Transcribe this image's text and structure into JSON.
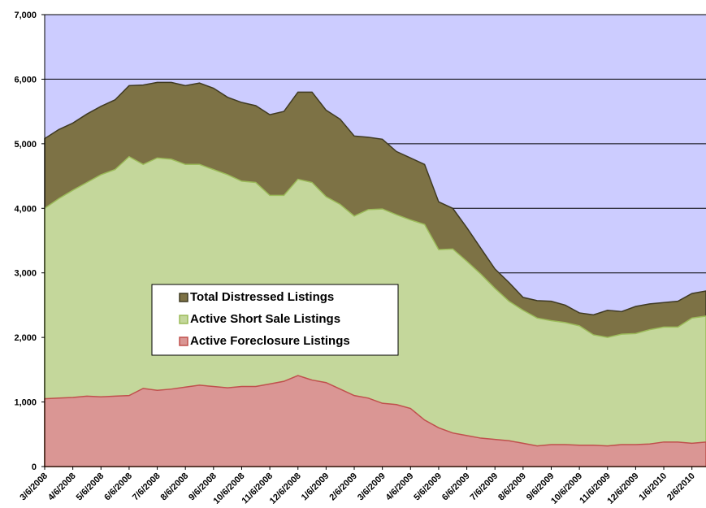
{
  "chart_data": {
    "type": "area",
    "categories": [
      "3/6/2008",
      null,
      "4/6/2008",
      null,
      "5/6/2008",
      null,
      "6/6/2008",
      null,
      "7/6/2008",
      null,
      "8/6/2008",
      null,
      "9/6/2008",
      null,
      "10/6/2008",
      null,
      "11/6/2008",
      null,
      "12/6/2008",
      null,
      "1/6/2009",
      null,
      "2/6/2009",
      null,
      "3/6/2009",
      null,
      "4/6/2009",
      null,
      "5/6/2009",
      null,
      "6/6/2009",
      null,
      "7/6/2009",
      null,
      "8/6/2009",
      null,
      "9/6/2009",
      null,
      "10/6/2009",
      null,
      "11/6/2009",
      null,
      "12/6/2009",
      null,
      "1/6/2010",
      null,
      "2/6/2010",
      null
    ],
    "series": [
      {
        "name": "Total Distressed Listings",
        "color": "#7d7245",
        "values": [
          5080,
          5220,
          5320,
          5460,
          5580,
          5680,
          5900,
          5910,
          5950,
          5950,
          5900,
          5940,
          5860,
          5720,
          5640,
          5590,
          5450,
          5500,
          5800,
          5800,
          5520,
          5380,
          5120,
          5100,
          5070,
          4880,
          4780,
          4680,
          4100,
          4000,
          3700,
          3380,
          3060,
          2850,
          2620,
          2570,
          2560,
          2500,
          2380,
          2350,
          2420,
          2400,
          2480,
          2520,
          2540,
          2560,
          2680,
          2720
        ]
      },
      {
        "name": "Active Short Sale Listings",
        "color": "#c4d79b",
        "values": [
          4000,
          4150,
          4280,
          4400,
          4520,
          4600,
          4800,
          4680,
          4780,
          4760,
          4680,
          4680,
          4600,
          4520,
          4420,
          4400,
          4200,
          4200,
          4450,
          4400,
          4180,
          4060,
          3880,
          3980,
          3990,
          3900,
          3820,
          3750,
          3360,
          3370,
          3180,
          2980,
          2760,
          2560,
          2420,
          2300,
          2260,
          2230,
          2180,
          2040,
          2000,
          2050,
          2060,
          2120,
          2160,
          2160,
          2300,
          2330
        ]
      },
      {
        "name": "Active Foreclosure Listings",
        "color": "#da9694",
        "values": [
          1050,
          1060,
          1070,
          1090,
          1080,
          1090,
          1100,
          1210,
          1180,
          1200,
          1230,
          1260,
          1240,
          1220,
          1240,
          1240,
          1280,
          1320,
          1410,
          1340,
          1300,
          1200,
          1100,
          1060,
          980,
          960,
          900,
          720,
          600,
          520,
          480,
          440,
          420,
          400,
          360,
          320,
          340,
          340,
          330,
          330,
          320,
          340,
          340,
          350,
          380,
          380,
          360,
          380
        ]
      }
    ],
    "ylim": [
      0,
      7000
    ],
    "yticks": [
      0,
      {
        "value": 1000,
        "label": "1,000"
      },
      {
        "value": 2000,
        "label": "2,000"
      },
      {
        "value": 3000,
        "label": "3,000"
      },
      {
        "value": 4000,
        "label": "4,000"
      },
      {
        "value": 5000,
        "label": "5,000"
      },
      {
        "value": 6000,
        "label": "6,000"
      },
      {
        "value": 7000,
        "label": "7,000"
      }
    ],
    "grid": true
  }
}
